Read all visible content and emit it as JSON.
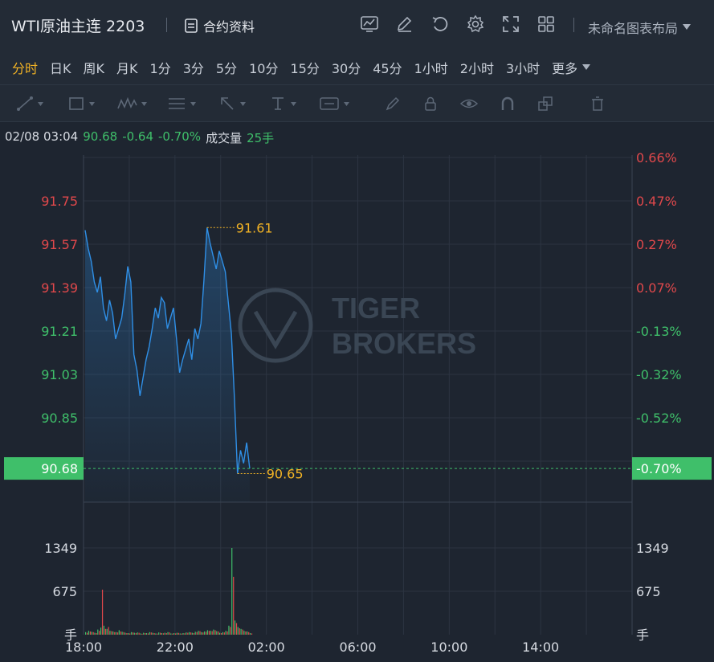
{
  "header": {
    "title": "WTI原油主连 2203",
    "contract_label": "合约资料",
    "layout_name": "未命名图表布局"
  },
  "periods": {
    "items": [
      "分时",
      "日K",
      "周K",
      "月K",
      "1分",
      "3分",
      "5分",
      "10分",
      "15分",
      "30分",
      "45分",
      "1小时",
      "2小时",
      "3小时"
    ],
    "active": "分时",
    "more_label": "更多"
  },
  "info": {
    "datetime": "02/08 03:04",
    "price": "90.68",
    "change": "-0.64",
    "change_pct": "-0.70%",
    "volume_label": "成交量",
    "volume_value": "25手"
  },
  "watermark": {
    "line1": "TIGER",
    "line2": "BROKERS"
  },
  "price_axis_left": [
    {
      "label": "91.75",
      "color": "#e0484b"
    },
    {
      "label": "91.57",
      "color": "#e0484b"
    },
    {
      "label": "91.39",
      "color": "#e0484b"
    },
    {
      "label": "91.21",
      "color": "#3fbf6a"
    },
    {
      "label": "91.03",
      "color": "#3fbf6a"
    },
    {
      "label": "90.85",
      "color": "#3fbf6a"
    }
  ],
  "pct_axis_right": [
    {
      "label": "0.66%",
      "color": "#e0484b"
    },
    {
      "label": "0.47%",
      "color": "#e0484b"
    },
    {
      "label": "0.27%",
      "color": "#e0484b"
    },
    {
      "label": "0.07%",
      "color": "#e0484b"
    },
    {
      "label": "-0.13%",
      "color": "#3fbf6a"
    },
    {
      "label": "-0.32%",
      "color": "#3fbf6a"
    },
    {
      "label": "-0.52%",
      "color": "#3fbf6a"
    }
  ],
  "current_price": {
    "left": "90.68",
    "right": "-0.70%",
    "color": "#3fbf6a"
  },
  "high_marker": "91.61",
  "low_marker": "90.65",
  "volume_axis": {
    "left": [
      "1349",
      "675",
      "手"
    ],
    "right": [
      "1349",
      "675",
      "手"
    ]
  },
  "time_axis": [
    "18:00",
    "22:00",
    "02:00",
    "06:00",
    "10:00",
    "14:00"
  ],
  "colors": {
    "line": "#2f8fe6",
    "up": "#e0484b",
    "down": "#3fbf6a",
    "marker": "#f2b325",
    "bg": "#1e2530"
  },
  "chart_data": {
    "type": "line",
    "x_range": [
      "18:00",
      "17:00"
    ],
    "x_step_minutes": 8,
    "y_range": [
      90.55,
      91.89
    ],
    "series": [
      {
        "values": [
          91.6,
          91.53,
          91.48,
          91.4,
          91.36,
          91.42,
          91.3,
          91.25,
          91.33,
          91.28,
          91.18,
          91.22,
          91.26,
          91.35,
          91.46,
          91.4,
          91.12,
          91.06,
          90.96,
          91.03,
          91.1,
          91.15,
          91.22,
          91.3,
          91.26,
          91.34,
          91.32,
          91.22,
          91.26,
          91.3,
          91.18,
          91.05,
          91.1,
          91.14,
          91.18,
          91.1,
          91.22,
          91.18,
          91.24,
          91.41,
          91.61,
          91.55,
          91.5,
          91.45,
          91.52,
          91.48,
          91.44,
          91.32,
          91.2,
          90.95,
          90.66,
          90.75,
          90.7,
          90.78,
          90.68
        ]
      }
    ],
    "volume_up": [
      40,
      60,
      45,
      30,
      80,
      110,
      140,
      90,
      60,
      50,
      40,
      70,
      45,
      30,
      25,
      40,
      30,
      35,
      20,
      30,
      25,
      40,
      30,
      20,
      35,
      25,
      30,
      40,
      20,
      25,
      30,
      20,
      25,
      35,
      40,
      30,
      45,
      60,
      40,
      50,
      70,
      60,
      80,
      55,
      30,
      40,
      60,
      140,
      1349,
      220,
      120,
      90,
      60,
      50,
      25
    ],
    "volume_down": [
      30,
      50,
      40,
      25,
      60,
      700,
      90,
      120,
      55,
      40,
      35,
      50,
      40,
      25,
      20,
      35,
      25,
      30,
      15,
      25,
      20,
      35,
      25,
      18,
      30,
      22,
      25,
      35,
      18,
      20,
      28,
      18,
      22,
      30,
      35,
      25,
      40,
      55,
      35,
      45,
      60,
      55,
      70,
      50,
      25,
      35,
      50,
      120,
      900,
      180,
      100,
      80,
      50,
      40,
      20
    ]
  }
}
